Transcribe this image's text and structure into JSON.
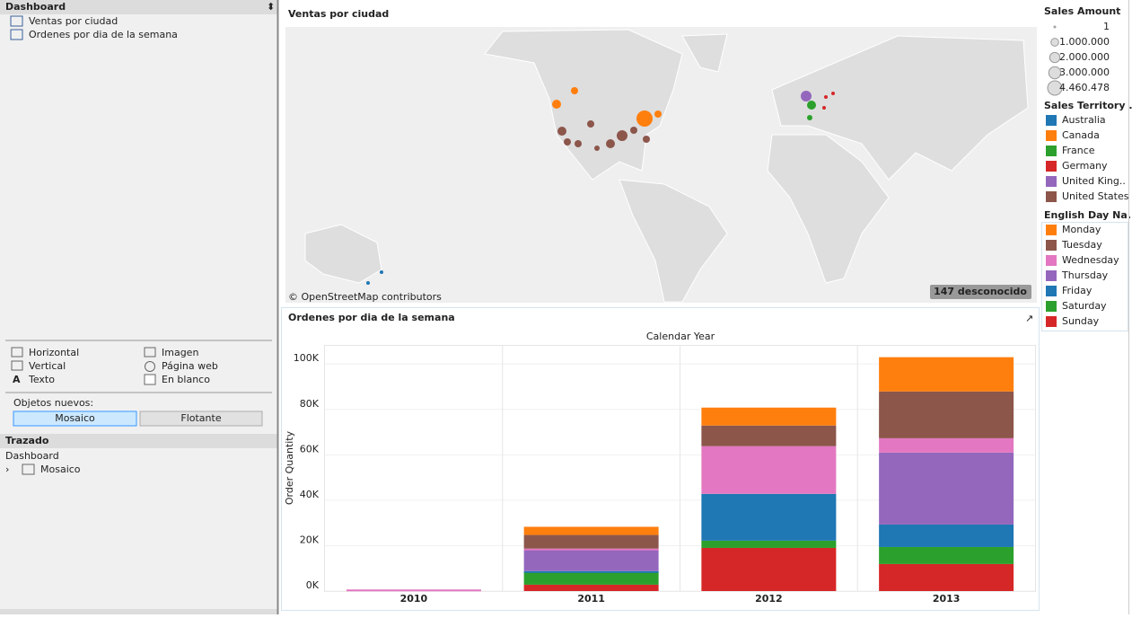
{
  "sidebar": {
    "title": "Dashboard",
    "sheets": [
      "Ventas por ciudad",
      "Ordenes por dia de la semana"
    ],
    "objects": [
      "Horizontal",
      "Imagen",
      "Vertical",
      "Página web",
      "Texto",
      "En blanco"
    ],
    "new_objects_label": "Objetos nuevos:",
    "buttons": [
      "Mosaico",
      "Flotante"
    ],
    "layout_title": "Trazado",
    "layout_root": "Dashboard",
    "layout_child": "Mosaico"
  },
  "map": {
    "title": "Ventas por ciudad",
    "attribution": "© OpenStreetMap contributors",
    "unknown_badge": "147 desconocido"
  },
  "legends": {
    "size_title": "Sales Amount",
    "sizes": [
      {
        "value": 1,
        "label": "1"
      },
      {
        "value": 1000000,
        "label": "1.000.000"
      },
      {
        "value": 2000000,
        "label": "2.000.000"
      },
      {
        "value": 3000000,
        "label": "3.000.000"
      },
      {
        "value": 4460478,
        "label": "4.460.478"
      }
    ],
    "territory_title": "Sales Territory ..",
    "territories": [
      {
        "name": "Australia",
        "color": "#1f77b4"
      },
      {
        "name": "Canada",
        "color": "#ff7f0e"
      },
      {
        "name": "France",
        "color": "#2ca02c"
      },
      {
        "name": "Germany",
        "color": "#d62728"
      },
      {
        "name": "United King..",
        "color": "#9467bd"
      },
      {
        "name": "United States",
        "color": "#8c564b"
      }
    ],
    "day_title": "English Day Na.."
  },
  "chart_data": {
    "type": "bar",
    "stacked": true,
    "title": "Ordenes por dia de la semana",
    "x_title": "Calendar Year",
    "y_title": "Order Quantity",
    "categories": [
      "2010",
      "2011",
      "2012",
      "2013"
    ],
    "series": [
      {
        "name": "Monday",
        "color": "#ff7f0e",
        "values": [
          0,
          3600,
          7900,
          15100
        ]
      },
      {
        "name": "Tuesday",
        "color": "#8c564b",
        "values": [
          0,
          6000,
          9100,
          20600
        ]
      },
      {
        "name": "Wednesday",
        "color": "#e377c2",
        "values": [
          700,
          400,
          21000,
          6300
        ]
      },
      {
        "name": "Thursday",
        "color": "#9467bd",
        "values": [
          0,
          9500,
          0,
          31700
        ]
      },
      {
        "name": "Friday",
        "color": "#1f77b4",
        "values": [
          0,
          400,
          20600,
          9900
        ]
      },
      {
        "name": "Saturday",
        "color": "#2ca02c",
        "values": [
          0,
          5600,
          3200,
          7500
        ]
      },
      {
        "name": "Sunday",
        "color": "#d62728",
        "values": [
          0,
          2800,
          19000,
          11900
        ]
      }
    ],
    "ylim": [
      0,
      108000
    ],
    "yticks": [
      {
        "value": 0,
        "label": "0K"
      },
      {
        "value": 20000,
        "label": "20K"
      },
      {
        "value": 40000,
        "label": "40K"
      },
      {
        "value": 60000,
        "label": "60K"
      },
      {
        "value": 80000,
        "label": "80K"
      },
      {
        "value": 100000,
        "label": "100K"
      }
    ],
    "grid": true
  }
}
